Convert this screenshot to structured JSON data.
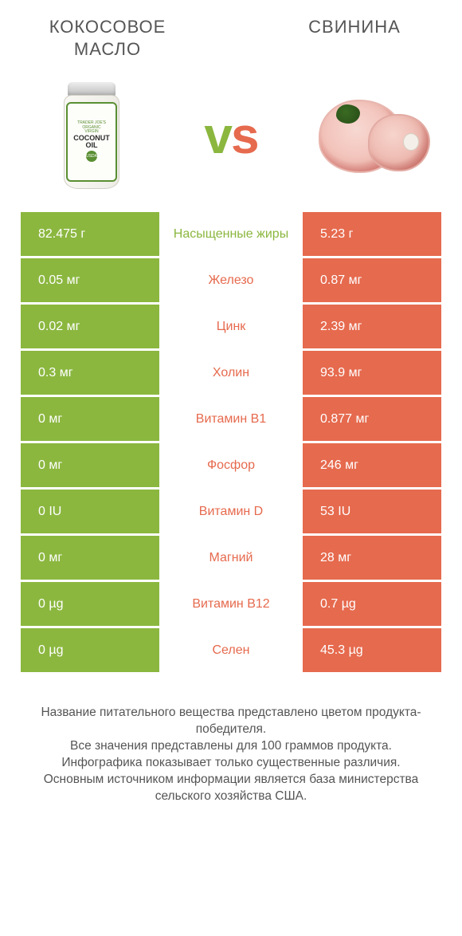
{
  "colors": {
    "left": "#8bb73f",
    "right": "#e66a4e",
    "text": "#555555",
    "background": "#ffffff"
  },
  "header": {
    "left_title": "Кокосовое масло",
    "right_title": "Свинина",
    "vs_v": "v",
    "vs_s": "s"
  },
  "jar": {
    "brand": "TRADER JOE'S",
    "line1": "ORGANIC",
    "line2": "VIRGIN",
    "name1": "COCONUT",
    "name2": "OIL",
    "badge": "USDA"
  },
  "table": {
    "label_fontsize": 16,
    "value_fontsize": 16,
    "rows": [
      {
        "label": "Насыщенные жиры",
        "left_value": "82.475 г",
        "right_value": "5.23 г",
        "winner": "left"
      },
      {
        "label": "Железо",
        "left_value": "0.05 мг",
        "right_value": "0.87 мг",
        "winner": "right"
      },
      {
        "label": "Цинк",
        "left_value": "0.02 мг",
        "right_value": "2.39 мг",
        "winner": "right"
      },
      {
        "label": "Холин",
        "left_value": "0.3 мг",
        "right_value": "93.9 мг",
        "winner": "right"
      },
      {
        "label": "Витамин B1",
        "left_value": "0 мг",
        "right_value": "0.877 мг",
        "winner": "right"
      },
      {
        "label": "Фосфор",
        "left_value": "0 мг",
        "right_value": "246 мг",
        "winner": "right"
      },
      {
        "label": "Витамин D",
        "left_value": "0 IU",
        "right_value": "53 IU",
        "winner": "right"
      },
      {
        "label": "Магний",
        "left_value": "0 мг",
        "right_value": "28 мг",
        "winner": "right"
      },
      {
        "label": "Витамин B12",
        "left_value": "0 µg",
        "right_value": "0.7 µg",
        "winner": "right"
      },
      {
        "label": "Селен",
        "left_value": "0 µg",
        "right_value": "45.3 µg",
        "winner": "right"
      }
    ]
  },
  "footer": {
    "line1": "Название питательного вещества представлено цветом продукта-победителя.",
    "line2": "Все значения представлены для 100 граммов продукта.",
    "line3": "Инфографика показывает только существенные различия.",
    "line4": "Основным источником информации является база министерства сельского хозяйства США."
  }
}
